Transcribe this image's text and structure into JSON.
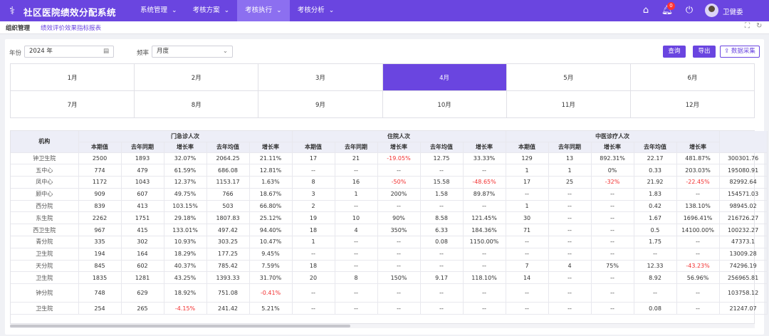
{
  "header": {
    "app_title": "社区医院绩效分配系统",
    "logo_icon": "logo-icon",
    "nav": [
      {
        "label": "系统管理",
        "active": false
      },
      {
        "label": "考核方案",
        "active": false
      },
      {
        "label": "考核执行",
        "active": true
      },
      {
        "label": "考核分析",
        "active": false
      }
    ],
    "icons": [
      "home-icon",
      "bell-icon",
      "power-icon"
    ],
    "notification_count": "0",
    "username": "卫健委"
  },
  "subtabs": [
    {
      "label": "组织管理",
      "active": true
    },
    {
      "label": "绩效评价效果指标报表",
      "active": false
    }
  ],
  "filters": {
    "year_label": "年份",
    "year_value": "2024 年",
    "freq_label": "频率",
    "freq_value": "月度"
  },
  "buttons": {
    "query": "查询",
    "export": "导出",
    "collect": "数据采集"
  },
  "months": [
    {
      "label": "1月",
      "active": false
    },
    {
      "label": "2月",
      "active": false
    },
    {
      "label": "3月",
      "active": false
    },
    {
      "label": "4月",
      "active": true
    },
    {
      "label": "5月",
      "active": false
    },
    {
      "label": "6月",
      "active": false
    },
    {
      "label": "7月",
      "active": false
    },
    {
      "label": "8月",
      "active": false
    },
    {
      "label": "9月",
      "active": false
    },
    {
      "label": "10月",
      "active": false
    },
    {
      "label": "11月",
      "active": false
    },
    {
      "label": "12月",
      "active": false
    }
  ],
  "table": {
    "org_header": "机构",
    "groups": [
      "门急诊人次",
      "住院人次",
      "中医诊疗人次"
    ],
    "subheaders": [
      "本期值",
      "去年同期",
      "增长率",
      "去年均值",
      "增长率"
    ],
    "rows": [
      {
        "org": "钟卫生院",
        "cells": [
          "2500",
          "1893",
          "32.07%",
          "2064.25",
          "21.11%",
          "17",
          "21",
          "-19.05%",
          "12.75",
          "33.33%",
          "129",
          "13",
          "892.31%",
          "22.17",
          "481.87%",
          "300301.76"
        ]
      },
      {
        "org": "五中心",
        "cells": [
          "774",
          "479",
          "61.59%",
          "686.08",
          "12.81%",
          "--",
          "--",
          "--",
          "--",
          "--",
          "1",
          "1",
          "0%",
          "0.33",
          "203.03%",
          "195080.91"
        ]
      },
      {
        "org": "凤中心",
        "cells": [
          "1172",
          "1043",
          "12.37%",
          "1153.17",
          "1.63%",
          "8",
          "16",
          "-50%",
          "15.58",
          "-48.65%",
          "17",
          "25",
          "-32%",
          "21.92",
          "-22.45%",
          "82992.64"
        ]
      },
      {
        "org": "顾中心",
        "cells": [
          "909",
          "607",
          "49.75%",
          "766",
          "18.67%",
          "3",
          "1",
          "200%",
          "1.58",
          "89.87%",
          "--",
          "--",
          "--",
          "1.83",
          "--",
          "154571.03"
        ]
      },
      {
        "org": "西分院",
        "cells": [
          "839",
          "413",
          "103.15%",
          "503",
          "66.80%",
          "2",
          "--",
          "--",
          "--",
          "--",
          "1",
          "--",
          "--",
          "0.42",
          "138.10%",
          "98945.02"
        ]
      },
      {
        "org": "东生院",
        "cells": [
          "2262",
          "1751",
          "29.18%",
          "1807.83",
          "25.12%",
          "19",
          "10",
          "90%",
          "8.58",
          "121.45%",
          "30",
          "--",
          "--",
          "1.67",
          "1696.41%",
          "216726.27"
        ]
      },
      {
        "org": "西卫生院",
        "cells": [
          "967",
          "415",
          "133.01%",
          "497.42",
          "94.40%",
          "18",
          "4",
          "350%",
          "6.33",
          "184.36%",
          "71",
          "--",
          "--",
          "0.5",
          "14100.00%",
          "100232.27"
        ]
      },
      {
        "org": "青分院",
        "cells": [
          "335",
          "302",
          "10.93%",
          "303.25",
          "10.47%",
          "1",
          "--",
          "--",
          "0.08",
          "1150.00%",
          "--",
          "--",
          "--",
          "1.75",
          "--",
          "47373.1"
        ]
      },
      {
        "org": "卫生院",
        "cells": [
          "194",
          "164",
          "18.29%",
          "177.25",
          "9.45%",
          "--",
          "--",
          "--",
          "--",
          "--",
          "--",
          "--",
          "--",
          "--",
          "--",
          "13009.28"
        ]
      },
      {
        "org": "天分院",
        "cells": [
          "845",
          "602",
          "40.37%",
          "785.42",
          "7.59%",
          "18",
          "--",
          "--",
          "--",
          "--",
          "7",
          "4",
          "75%",
          "12.33",
          "-43.23%",
          "74296.19"
        ]
      },
      {
        "org": "卫生院",
        "cells": [
          "1835",
          "1281",
          "43.25%",
          "1393.33",
          "31.70%",
          "20",
          "8",
          "150%",
          "9.17",
          "118.10%",
          "14",
          "--",
          "--",
          "8.92",
          "56.96%",
          "256965.81"
        ]
      },
      {
        "org": "钟分院",
        "cells": [
          "748",
          "629",
          "18.92%",
          "751.08",
          "-0.41%",
          "--",
          "--",
          "--",
          "--",
          "--",
          "--",
          "--",
          "--",
          "--",
          "--",
          "103758.12"
        ]
      },
      {
        "org": "卫生院",
        "cells": [
          "254",
          "265",
          "-4.15%",
          "241.42",
          "5.21%",
          "--",
          "--",
          "--",
          "--",
          "--",
          "--",
          "--",
          "--",
          "0.08",
          "--",
          "21247.07"
        ]
      }
    ]
  },
  "accent_color": "#6a45e0",
  "negative_color": "#f23030"
}
